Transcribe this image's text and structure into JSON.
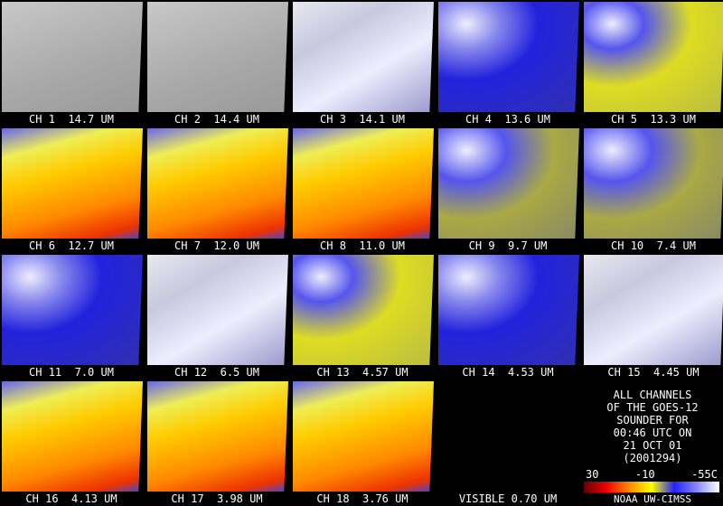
{
  "panels": [
    {
      "label": "CH 1  14.7 UM"
    },
    {
      "label": "CH 2  14.4 UM"
    },
    {
      "label": "CH 3  14.1 UM"
    },
    {
      "label": "CH 4  13.6 UM"
    },
    {
      "label": "CH 5  13.3 UM"
    },
    {
      "label": "CH 6  12.7 UM"
    },
    {
      "label": "CH 7  12.0 UM"
    },
    {
      "label": "CH 8  11.0 UM"
    },
    {
      "label": "CH 9  9.7 UM"
    },
    {
      "label": "CH 10  7.4 UM"
    },
    {
      "label": "CH 11  7.0 UM"
    },
    {
      "label": "CH 12  6.5 UM"
    },
    {
      "label": "CH 13  4.57 UM"
    },
    {
      "label": "CH 14  4.53 UM"
    },
    {
      "label": "CH 15  4.45 UM"
    },
    {
      "label": "CH 16  4.13 UM"
    },
    {
      "label": "CH 17  3.98 UM"
    },
    {
      "label": "CH 18  3.76 UM"
    },
    {
      "label": "VISIBLE 0.70 UM"
    }
  ],
  "info": {
    "lines": [
      "ALL CHANNELS",
      "OF THE GOES-12",
      "SOUNDER FOR",
      "00:46 UTC ON",
      "21 OCT 01",
      "(2001294)"
    ],
    "scale": [
      "30",
      "-10",
      "-55C"
    ],
    "credit": "NOAA UW-CIMSS"
  }
}
